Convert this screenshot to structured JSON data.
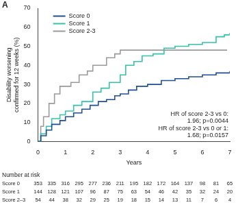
{
  "chart_data": {
    "type": "line",
    "panel_label": "A",
    "x_label": "Years",
    "y_label": "Disability worsening confirmed for 12 weeks (%)",
    "xlim": [
      0,
      7
    ],
    "xticks": [
      0,
      1,
      2,
      3,
      4,
      5,
      6,
      7
    ],
    "ylim": [
      0,
      70
    ],
    "yticks": [
      0,
      10,
      20,
      30,
      40,
      50,
      60,
      70
    ],
    "grid": false,
    "legend": "top left",
    "line_style": "step",
    "series": [
      {
        "name": "Score 0",
        "color": "#1f4e96",
        "x": [
          0,
          0.1,
          0.3,
          0.5,
          0.8,
          1,
          1.3,
          1.6,
          1.9,
          2.2,
          2.5,
          2.8,
          3,
          3.3,
          3.6,
          4,
          4.5,
          5,
          5.5,
          6,
          6.5,
          7
        ],
        "values": [
          0,
          3,
          6,
          9,
          11,
          13,
          15,
          17,
          19,
          21,
          22,
          24,
          25,
          27,
          29,
          30,
          32,
          33,
          34,
          35,
          36,
          37
        ]
      },
      {
        "name": "Score 1",
        "color": "#33c4a8",
        "x": [
          0,
          0.1,
          0.3,
          0.5,
          0.8,
          1,
          1.3,
          1.6,
          2,
          2.3,
          2.6,
          3,
          3.2,
          3.5,
          3.8,
          4.2,
          4.6,
          5,
          5.5,
          6,
          6.5,
          6.8,
          7
        ],
        "values": [
          0,
          4,
          8,
          12,
          14,
          16,
          19,
          21,
          26,
          28,
          31,
          35,
          40,
          42,
          45,
          46,
          49,
          50,
          51,
          52,
          55,
          56,
          57
        ]
      },
      {
        "name": "Score 2-3",
        "color": "#9a9a9a",
        "x": [
          0,
          0.1,
          0.2,
          0.4,
          0.6,
          0.8,
          1.2,
          1.5,
          1.8,
          2,
          2.5,
          2.8,
          3,
          6.9
        ],
        "values": [
          0,
          8,
          13,
          20,
          25,
          29,
          31,
          35,
          37,
          40,
          44,
          46,
          48,
          48
        ]
      }
    ],
    "annotations": [
      "HR of score 2-3 vs 0:",
      "1.96; p=0.0044",
      "HR of score 2-3 vs 0 or 1:",
      "1.68; p=0.0157"
    ],
    "risk_table": {
      "title": "Number at risk",
      "x": [
        0,
        0.5,
        1,
        1.5,
        2,
        2.5,
        3,
        3.5,
        4,
        4.5,
        5,
        5.5,
        6,
        6.5,
        7
      ],
      "rows": [
        {
          "name": "Score 0",
          "values": [
            353,
            335,
            316,
            295,
            277,
            236,
            211,
            195,
            182,
            172,
            164,
            137,
            98,
            81,
            65
          ]
        },
        {
          "name": "Score 1",
          "values": [
            144,
            128,
            121,
            107,
            96,
            87,
            75,
            63,
            54,
            46,
            42,
            35,
            32,
            24,
            20
          ]
        },
        {
          "name": "Score 2–3",
          "values": [
            54,
            44,
            38,
            32,
            29,
            25,
            19,
            18,
            15,
            14,
            13,
            11,
            7,
            6,
            4
          ]
        }
      ]
    }
  }
}
